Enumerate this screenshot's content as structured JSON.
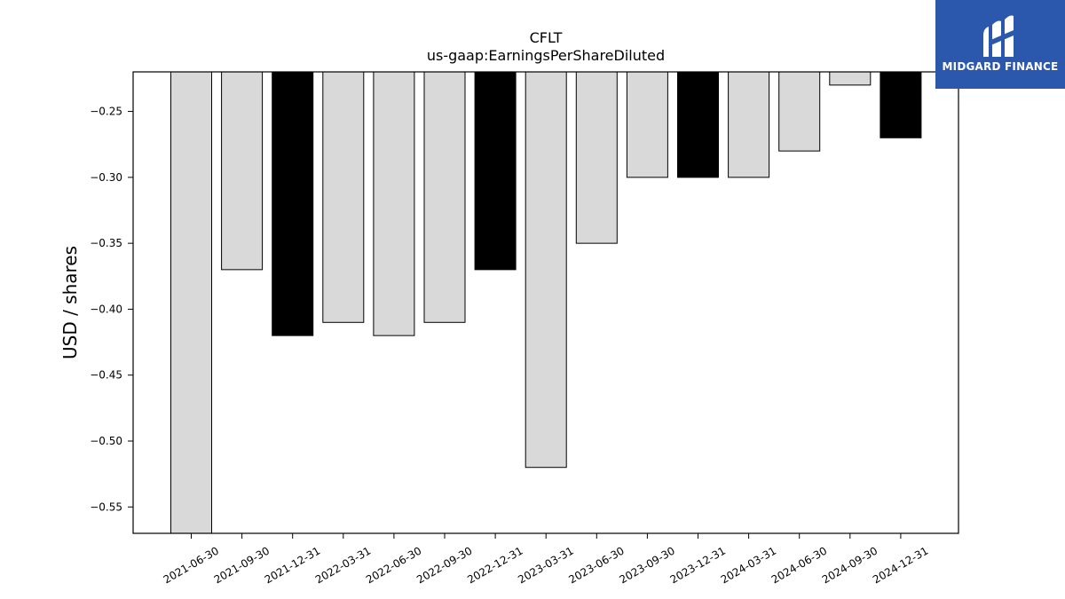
{
  "brand": {
    "name": "MIDGARD FINANCE",
    "bg_color": "#2b57ad"
  },
  "chart_data": {
    "type": "bar",
    "title": "CFLT",
    "subtitle": "us-gaap:EarningsPerShareDiluted",
    "ylabel": "USD / shares",
    "xlabel": "",
    "ylim": [
      -0.57,
      -0.22
    ],
    "yticks": [
      -0.25,
      -0.3,
      -0.35,
      -0.4,
      -0.45,
      -0.5,
      -0.55
    ],
    "ytick_labels": [
      "−0.25",
      "−0.30",
      "−0.35",
      "−0.40",
      "−0.45",
      "−0.50",
      "−0.55"
    ],
    "grid": false,
    "categories": [
      "2021-06-30",
      "2021-09-30",
      "2021-12-31",
      "2022-03-31",
      "2022-06-30",
      "2022-09-30",
      "2022-12-31",
      "2023-03-31",
      "2023-06-30",
      "2023-09-30",
      "2023-12-31",
      "2024-03-31",
      "2024-06-30",
      "2024-09-30",
      "2024-12-31"
    ],
    "values": [
      -0.57,
      -0.37,
      -0.42,
      -0.41,
      -0.42,
      -0.41,
      -0.37,
      -0.52,
      -0.35,
      -0.3,
      -0.3,
      -0.3,
      -0.28,
      -0.23,
      -0.27
    ],
    "highlight": [
      false,
      false,
      true,
      false,
      false,
      false,
      true,
      false,
      false,
      false,
      true,
      false,
      false,
      false,
      true
    ],
    "colors": {
      "normal": "#d9d9d9",
      "highlight": "#000000",
      "edge": "#000000"
    }
  }
}
